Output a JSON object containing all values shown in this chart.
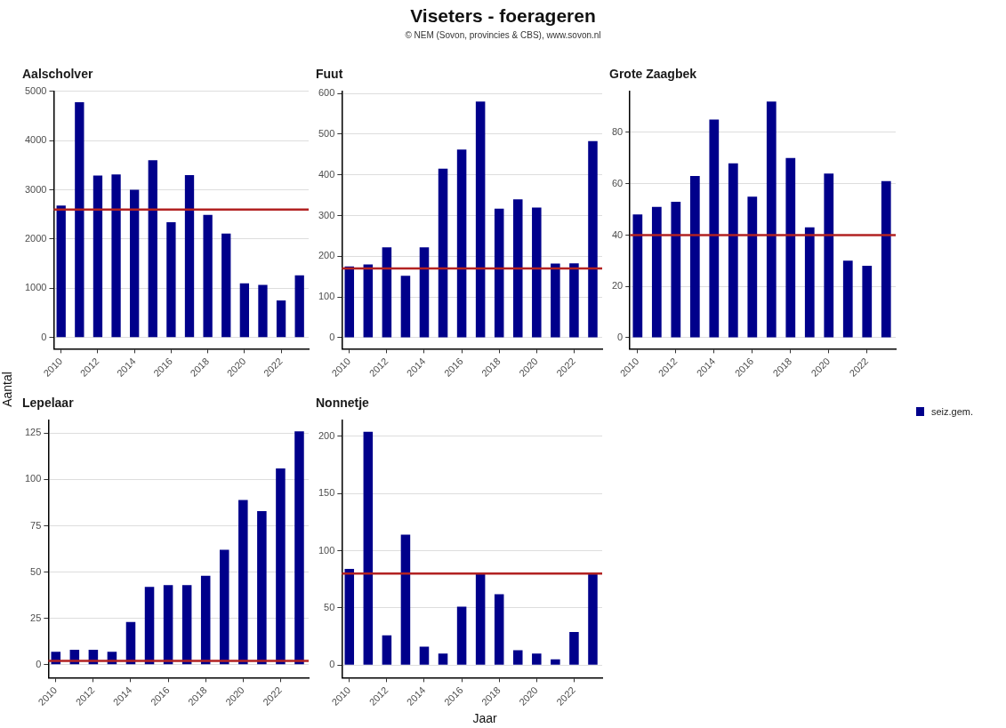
{
  "chart_data": [
    {
      "type": "bar",
      "title": "Aalscholver",
      "annotations": [
        "Viseters - foerageren",
        "© NEM (Sovon, provincies & CBS), www.sovon.nl"
      ],
      "ylabel": "Aantal",
      "x": [
        2010,
        2011,
        2012,
        2013,
        2014,
        2015,
        2016,
        2017,
        2018,
        2019,
        2020,
        2021,
        2022,
        2023
      ],
      "series": [
        {
          "name": "seiz.gem.",
          "color": "#00008b",
          "values": [
            2680,
            4780,
            3290,
            3310,
            3000,
            3600,
            2340,
            3300,
            2490,
            2110,
            1100,
            1070,
            750,
            1260
          ]
        }
      ],
      "xlim": [
        2009.6,
        2023.5
      ],
      "xticks": [
        2010,
        2012,
        2014,
        2016,
        2018,
        2020,
        2022
      ],
      "ylim": [
        -230,
        5000
      ],
      "yticks": [
        0,
        1000,
        2000,
        3000,
        4000,
        5000
      ],
      "grid": "y",
      "legend": "right",
      "ref_lines": [
        {
          "axis": "y",
          "value": 2600,
          "color": "#b22222"
        }
      ]
    },
    {
      "type": "bar",
      "title": "Fuut",
      "x": [
        2010,
        2011,
        2012,
        2013,
        2014,
        2015,
        2016,
        2017,
        2018,
        2019,
        2020,
        2021,
        2022,
        2023
      ],
      "series": [
        {
          "name": "seiz.gem.",
          "color": "#00008b",
          "values": [
            175,
            180,
            222,
            152,
            222,
            415,
            462,
            580,
            317,
            340,
            320,
            182,
            183,
            483
          ]
        }
      ],
      "xlim": [
        2009.6,
        2023.5
      ],
      "xticks": [
        2010,
        2012,
        2014,
        2016,
        2018,
        2020,
        2022
      ],
      "ylim": [
        -27,
        605
      ],
      "yticks": [
        0,
        100,
        200,
        300,
        400,
        500,
        600
      ],
      "grid": "y",
      "legend": "right",
      "ref_lines": [
        {
          "axis": "y",
          "value": 170,
          "color": "#b22222"
        }
      ]
    },
    {
      "type": "bar",
      "title": "Grote Zaagbek",
      "x": [
        2010,
        2011,
        2012,
        2013,
        2014,
        2015,
        2016,
        2017,
        2018,
        2019,
        2020,
        2021,
        2022,
        2023
      ],
      "series": [
        {
          "name": "seiz.gem.",
          "color": "#00008b",
          "values": [
            48,
            51,
            53,
            63,
            85,
            68,
            55,
            92,
            70,
            43,
            64,
            30,
            28,
            61
          ]
        }
      ],
      "xlim": [
        2009.6,
        2023.5
      ],
      "xticks": [
        2010,
        2012,
        2014,
        2016,
        2018,
        2020,
        2022
      ],
      "ylim": [
        -4.3,
        96
      ],
      "yticks": [
        0,
        20,
        40,
        60,
        80
      ],
      "grid": "y",
      "legend": "right",
      "ref_lines": [
        {
          "axis": "y",
          "value": 40,
          "color": "#b22222"
        }
      ]
    },
    {
      "type": "bar",
      "title": "Lepelaar",
      "x": [
        2010,
        2011,
        2012,
        2013,
        2014,
        2015,
        2016,
        2017,
        2018,
        2019,
        2020,
        2021,
        2022,
        2023
      ],
      "series": [
        {
          "name": "seiz.gem.",
          "color": "#00008b",
          "values": [
            7,
            8,
            8,
            7,
            23,
            42,
            43,
            43,
            48,
            62,
            89,
            83,
            106,
            126
          ]
        }
      ],
      "xlim": [
        2009.6,
        2023.5
      ],
      "xticks": [
        2010,
        2012,
        2014,
        2016,
        2018,
        2020,
        2022
      ],
      "ylim": [
        -7,
        132
      ],
      "yticks": [
        0,
        25,
        50,
        75,
        100,
        125
      ],
      "grid": "y",
      "legend": "right",
      "ref_lines": [
        {
          "axis": "y",
          "value": 2,
          "color": "#b22222"
        }
      ]
    },
    {
      "type": "bar",
      "title": "Nonnetje",
      "xlabel": "Jaar",
      "x": [
        2010,
        2011,
        2012,
        2013,
        2014,
        2015,
        2016,
        2017,
        2018,
        2019,
        2020,
        2021,
        2022,
        2023
      ],
      "series": [
        {
          "name": "seiz.gem.",
          "color": "#00008b",
          "values": [
            84,
            204,
            26,
            114,
            16,
            10,
            51,
            80,
            62,
            13,
            10,
            5,
            29,
            80
          ]
        }
      ],
      "xlim": [
        2009.6,
        2023.5
      ],
      "xticks": [
        2010,
        2012,
        2014,
        2016,
        2018,
        2020,
        2022
      ],
      "ylim": [
        -11,
        214
      ],
      "yticks": [
        0,
        50,
        100,
        150,
        200
      ],
      "grid": "y",
      "legend": "right",
      "ref_lines": [
        {
          "axis": "y",
          "value": 80,
          "color": "#b22222"
        }
      ]
    }
  ]
}
